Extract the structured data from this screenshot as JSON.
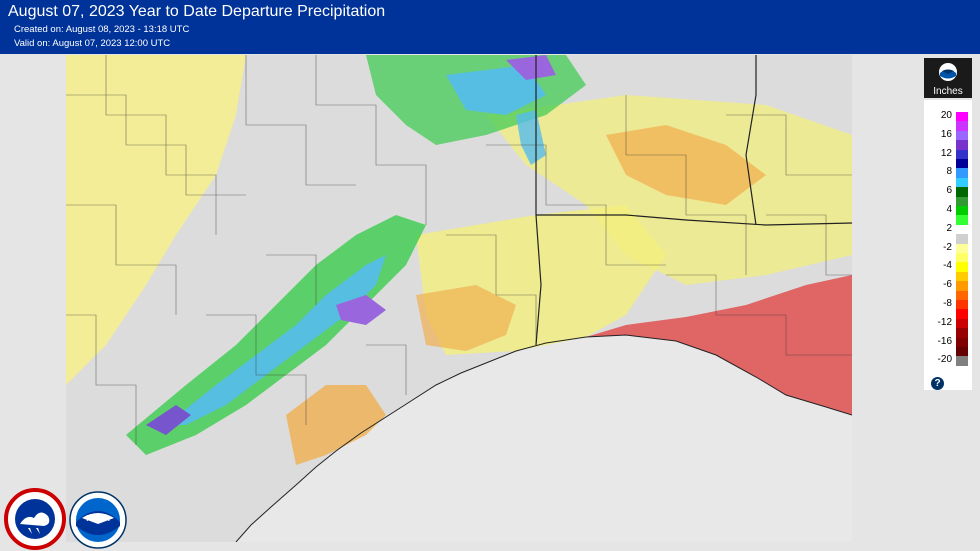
{
  "header": {
    "title": "August 07, 2023 Year to Date Departure Precipitation",
    "created": "Created on: August 08, 2023 - 13:18 UTC",
    "valid": "Valid on: August 07, 2023 12:00 UTC"
  },
  "legend": {
    "units": "Inches",
    "logo_icon": "noaa-logo-icon",
    "help_icon": "question-icon",
    "help_label": "?",
    "entries": [
      {
        "label": "20",
        "color": "#ff00ff"
      },
      {
        "label": "",
        "color": "#cc33ff"
      },
      {
        "label": "16",
        "color": "#9966ff"
      },
      {
        "label": "",
        "color": "#7733cc"
      },
      {
        "label": "12",
        "color": "#3333cc"
      },
      {
        "label": "",
        "color": "#000099"
      },
      {
        "label": "8",
        "color": "#3399ff"
      },
      {
        "label": "",
        "color": "#33ccff"
      },
      {
        "label": "6",
        "color": "#006600"
      },
      {
        "label": "",
        "color": "#339933"
      },
      {
        "label": "4",
        "color": "#00cc00"
      },
      {
        "label": "",
        "color": "#33ff33"
      },
      {
        "label": "2",
        "color": "#ffffff"
      },
      {
        "label": "",
        "color": "#d0d0d0"
      },
      {
        "label": "-2",
        "color": "#ffff99"
      },
      {
        "label": "",
        "color": "#ffff66"
      },
      {
        "label": "-4",
        "color": "#ffff00"
      },
      {
        "label": "",
        "color": "#ffcc00"
      },
      {
        "label": "-6",
        "color": "#ff9900"
      },
      {
        "label": "",
        "color": "#ff6600"
      },
      {
        "label": "-8",
        "color": "#ff3300"
      },
      {
        "label": "",
        "color": "#ff0000"
      },
      {
        "label": "-12",
        "color": "#cc0000"
      },
      {
        "label": "",
        "color": "#990000"
      },
      {
        "label": "-16",
        "color": "#800000"
      },
      {
        "label": "",
        "color": "#660000"
      },
      {
        "label": "-20",
        "color": "#808080"
      }
    ]
  },
  "logos": {
    "nws": "National Weather Service",
    "noaa": "NOAA"
  }
}
